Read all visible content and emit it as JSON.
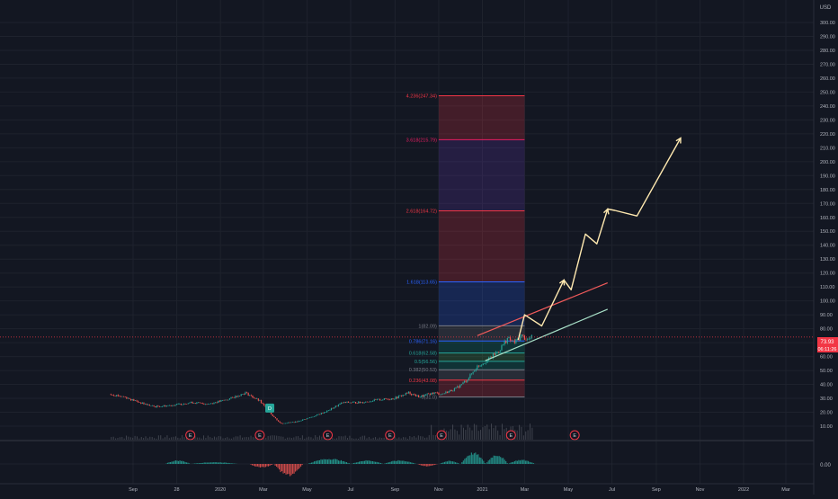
{
  "currency_label": "USD",
  "last_price_label": "73.93",
  "countdown_label": "06:11:26",
  "macd_zero_label": "0.00",
  "colors": {
    "background": "#131722",
    "grid": "#1e222d",
    "axis_text": "#b2b5be",
    "up": "#26a69a",
    "down": "#ef5350",
    "projection": "#ffe9b0",
    "channel_upper": "#f05a5a",
    "channel_lower": "#a8e0c8",
    "price_line": "#f23645",
    "earnings": "#f23645",
    "dividend": "#26a69a"
  },
  "chart_data": {
    "type": "candlestick",
    "y_axis": {
      "unit": "USD",
      "range": [
        5,
        305
      ],
      "ticks": [
        10,
        20,
        30,
        40,
        50,
        60,
        70,
        80,
        90,
        100,
        110,
        120,
        130,
        140,
        150,
        160,
        170,
        180,
        190,
        200,
        210,
        220,
        230,
        240,
        250,
        260,
        270,
        280,
        290,
        300
      ],
      "tick_labels": [
        "10.00",
        "20.00",
        "30.00",
        "40.00",
        "50.00",
        "60.00",
        "70.00",
        "80.00",
        "90.00",
        "100.00",
        "110.00",
        "120.00",
        "130.00",
        "140.00",
        "150.00",
        "160.00",
        "170.00",
        "180.00",
        "190.00",
        "200.00",
        "210.00",
        "220.00",
        "230.00",
        "240.00",
        "250.00",
        "260.00",
        "270.00",
        "280.00",
        "290.00",
        "300.00"
      ]
    },
    "x_axis": {
      "range": [
        "2019-08-01",
        "2022-05-15"
      ],
      "ticks": [
        {
          "date": "2019-09-01",
          "label": "Sep"
        },
        {
          "date": "2019-11-01",
          "label": "28"
        },
        {
          "date": "2020-01-01",
          "label": "2020"
        },
        {
          "date": "2020-03-01",
          "label": "Mar"
        },
        {
          "date": "2020-05-01",
          "label": "May"
        },
        {
          "date": "2020-07-01",
          "label": "Jul"
        },
        {
          "date": "2020-09-01",
          "label": "Sep"
        },
        {
          "date": "2020-11-01",
          "label": "Nov"
        },
        {
          "date": "2021-01-01",
          "label": "2021"
        },
        {
          "date": "2021-03-01",
          "label": "Mar"
        },
        {
          "date": "2021-05-01",
          "label": "May"
        },
        {
          "date": "2021-07-01",
          "label": "Jul"
        },
        {
          "date": "2021-09-01",
          "label": "Sep"
        },
        {
          "date": "2021-11-01",
          "label": "Nov"
        },
        {
          "date": "2022-01-01",
          "label": "2022"
        },
        {
          "date": "2022-03-01",
          "label": "Mar"
        }
      ]
    },
    "price_path": [
      {
        "date": "2019-08-01",
        "close": 33
      },
      {
        "date": "2019-08-20",
        "close": 31
      },
      {
        "date": "2019-09-10",
        "close": 27
      },
      {
        "date": "2019-10-01",
        "close": 24
      },
      {
        "date": "2019-10-25",
        "close": 25
      },
      {
        "date": "2019-11-20",
        "close": 27
      },
      {
        "date": "2019-12-15",
        "close": 26
      },
      {
        "date": "2020-01-10",
        "close": 29
      },
      {
        "date": "2020-02-05",
        "close": 34
      },
      {
        "date": "2020-02-25",
        "close": 28
      },
      {
        "date": "2020-03-15",
        "close": 17
      },
      {
        "date": "2020-03-25",
        "close": 12
      },
      {
        "date": "2020-04-15",
        "close": 13
      },
      {
        "date": "2020-05-10",
        "close": 17
      },
      {
        "date": "2020-05-30",
        "close": 21
      },
      {
        "date": "2020-06-20",
        "close": 27
      },
      {
        "date": "2020-07-15",
        "close": 27
      },
      {
        "date": "2020-08-10",
        "close": 29
      },
      {
        "date": "2020-08-31",
        "close": 30
      },
      {
        "date": "2020-09-20",
        "close": 34
      },
      {
        "date": "2020-10-05",
        "close": 31
      },
      {
        "date": "2020-10-25",
        "close": 34
      },
      {
        "date": "2020-11-05",
        "close": 33
      },
      {
        "date": "2020-11-25",
        "close": 37
      },
      {
        "date": "2020-12-10",
        "close": 43
      },
      {
        "date": "2020-12-25",
        "close": 53
      },
      {
        "date": "2021-01-10",
        "close": 58
      },
      {
        "date": "2021-01-25",
        "close": 65
      },
      {
        "date": "2021-02-05",
        "close": 73
      },
      {
        "date": "2021-02-15",
        "close": 70
      },
      {
        "date": "2021-02-25",
        "close": 75
      },
      {
        "date": "2021-03-05",
        "close": 72
      },
      {
        "date": "2021-03-12",
        "close": 74
      }
    ],
    "current_price": 74,
    "fibonacci": {
      "date_range": [
        "2020-11-01",
        "2021-03-01"
      ],
      "levels": [
        {
          "label": "4.236(247.34)",
          "value": 247.34,
          "color": "#f23645",
          "zone": "#f23645"
        },
        {
          "label": "3.618(215.79)",
          "value": 215.79,
          "color": "#e91e63",
          "zone": "#673ab7"
        },
        {
          "label": "2.618(164.72)",
          "value": 164.72,
          "color": "#f23645",
          "zone": "#f23645"
        },
        {
          "label": "1.618(113.65)",
          "value": 113.65,
          "color": "#2962ff",
          "zone": "#2962ff"
        },
        {
          "label": "1(82.09)",
          "value": 82.09,
          "color": "#787b86",
          "zone": "#787b86"
        },
        {
          "label": "0.786(71.16)",
          "value": 71.16,
          "color": "#2962ff",
          "zone": "#089981"
        },
        {
          "label": "0.618(62.58)",
          "value": 62.58,
          "color": "#26a69a",
          "zone": "#4caf50"
        },
        {
          "label": "0.5(56.56)",
          "value": 56.56,
          "color": "#26a69a",
          "zone": "#089981"
        },
        {
          "label": "0.382(50.53)",
          "value": 50.53,
          "color": "#787b86",
          "zone": "#787b86"
        },
        {
          "label": "0.236(43.08)",
          "value": 43.08,
          "color": "#f23645",
          "zone": "#f23645"
        },
        {
          "label": "0(31.0)",
          "value": 31.0,
          "color": "#787b86",
          "zone": ""
        }
      ]
    },
    "channel": {
      "upper": [
        {
          "date": "2020-12-25",
          "value": 75
        },
        {
          "date": "2021-06-25",
          "value": 113
        }
      ],
      "lower": [
        {
          "date": "2021-01-05",
          "value": 57
        },
        {
          "date": "2021-06-25",
          "value": 94
        }
      ]
    },
    "projection": [
      {
        "date": "2021-02-20",
        "value": 72
      },
      {
        "date": "2021-03-01",
        "value": 90
      },
      {
        "date": "2021-03-25",
        "value": 82
      },
      {
        "date": "2021-04-25",
        "value": 115
      },
      {
        "date": "2021-05-05",
        "value": 108
      },
      {
        "date": "2021-05-25",
        "value": 148
      },
      {
        "date": "2021-06-10",
        "value": 141
      },
      {
        "date": "2021-06-25",
        "value": 166
      },
      {
        "date": "2021-07-05",
        "value": 165
      },
      {
        "date": "2021-08-05",
        "value": 161
      },
      {
        "date": "2021-10-05",
        "value": 217
      }
    ],
    "earnings_markers": [
      {
        "date": "2019-11-20",
        "label": "E"
      },
      {
        "date": "2020-02-25",
        "label": "E"
      },
      {
        "date": "2020-05-30",
        "label": "E"
      },
      {
        "date": "2020-08-25",
        "label": "E"
      },
      {
        "date": "2020-11-05",
        "label": "E"
      },
      {
        "date": "2021-02-10",
        "label": "E"
      },
      {
        "date": "2021-05-10",
        "label": "E"
      }
    ],
    "dividend_marker": {
      "date": "2020-03-10",
      "value": 23,
      "label": "D"
    },
    "macd_histogram": {
      "zero_label": "0.00",
      "segments": [
        {
          "start": "2019-10-15",
          "end": "2019-11-20",
          "peak": 0.3
        },
        {
          "start": "2019-11-20",
          "end": "2020-01-25",
          "peak": 0.15
        },
        {
          "start": "2020-02-10",
          "end": "2020-03-15",
          "peak": -0.3
        },
        {
          "start": "2020-03-15",
          "end": "2020-04-25",
          "peak": -1.0
        },
        {
          "start": "2020-05-01",
          "end": "2020-07-01",
          "peak": 0.45
        },
        {
          "start": "2020-07-01",
          "end": "2020-08-15",
          "peak": 0.3
        },
        {
          "start": "2020-08-15",
          "end": "2020-09-30",
          "peak": 0.3
        },
        {
          "start": "2020-10-01",
          "end": "2020-10-30",
          "peak": -0.2
        },
        {
          "start": "2020-11-01",
          "end": "2020-11-30",
          "peak": 0.25
        },
        {
          "start": "2020-12-01",
          "end": "2021-01-05",
          "peak": 0.95
        },
        {
          "start": "2021-01-05",
          "end": "2021-02-05",
          "peak": 0.8
        },
        {
          "start": "2021-02-05",
          "end": "2021-03-15",
          "peak": 0.35
        }
      ]
    }
  }
}
